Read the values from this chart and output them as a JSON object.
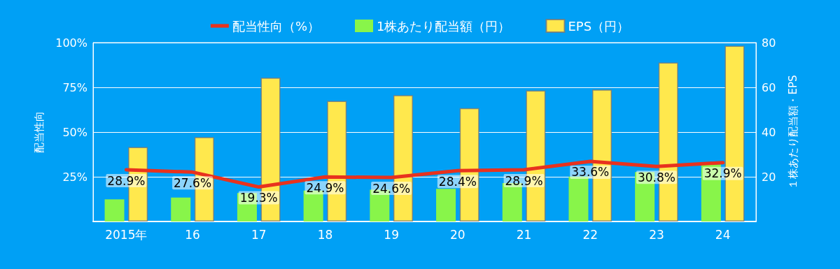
{
  "chart_data": {
    "type": "bar",
    "categories": [
      "2015年",
      "16",
      "17",
      "18",
      "19",
      "20",
      "21",
      "22",
      "23",
      "24"
    ],
    "ylabel": "配当性向",
    "y2label": "１株あたり配当額・EPS",
    "ylim": [
      0,
      100
    ],
    "yticks": [
      {
        "value": 25,
        "label": "25%"
      },
      {
        "value": 50,
        "label": "50%"
      },
      {
        "value": 75,
        "label": "75%"
      },
      {
        "value": 100,
        "label": "100%"
      }
    ],
    "y2lim": [
      0,
      80
    ],
    "y2ticks": [
      20,
      40,
      60,
      80
    ],
    "grid": "y",
    "legend": "top",
    "series": [
      {
        "name": "配当性向（%）",
        "type": "line",
        "color": "#e8321e",
        "values": [
          28.9,
          27.6,
          19.3,
          24.9,
          24.6,
          28.4,
          28.9,
          33.6,
          30.8,
          32.9
        ],
        "value_labels": [
          "28.9%",
          "27.6%",
          "19.3%",
          "24.9%",
          "24.6%",
          "28.4%",
          "28.9%",
          "33.6%",
          "30.8%",
          "32.9%"
        ],
        "marker": "none"
      },
      {
        "name": "1株あたり配当額（円）",
        "axis": "y2",
        "color": "#88f54a",
        "values": [
          9.9,
          10.7,
          12.7,
          13.8,
          14.2,
          14.6,
          17.2,
          20.1,
          22.1,
          25.5
        ]
      },
      {
        "name": "EPS（円）",
        "axis": "y2",
        "color": "#ffe84d",
        "values": [
          33.3,
          37.7,
          64.3,
          53.9,
          56.5,
          50.7,
          58.6,
          59.0,
          71.1,
          78.6
        ]
      }
    ]
  }
}
